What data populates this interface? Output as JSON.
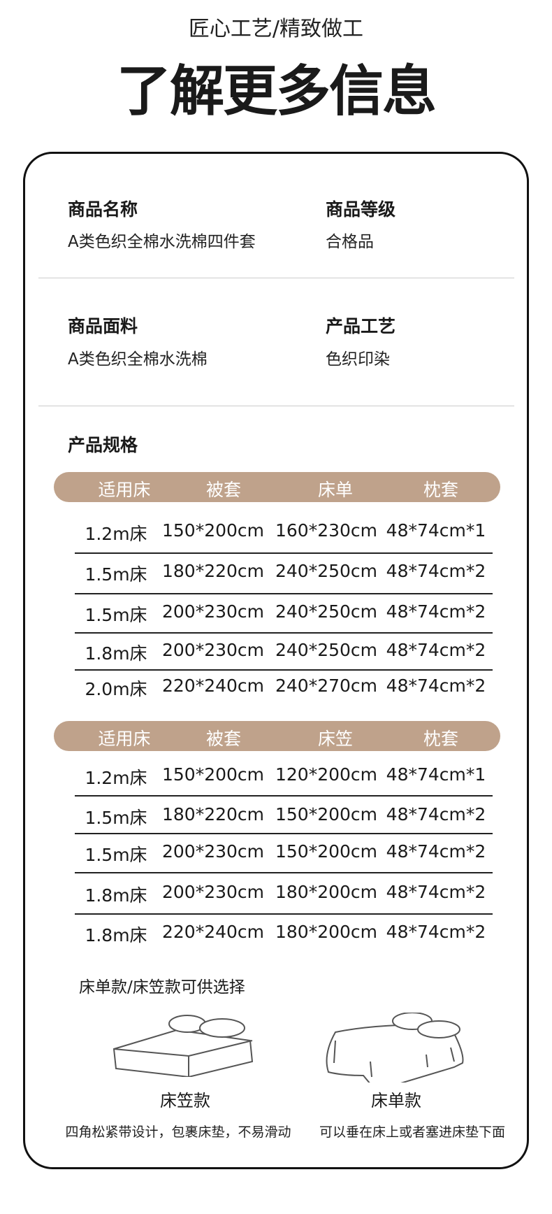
{
  "header": {
    "subtitle": "匠心工艺/精致做工",
    "title": "了解更多信息"
  },
  "info": [
    {
      "label": "商品名称",
      "value": "A类色织全棉水洗棉四件套"
    },
    {
      "label": "商品等级",
      "value": "合格品"
    },
    {
      "label": "商品面料",
      "value": "A类色织全棉水洗棉"
    },
    {
      "label": "产品工艺",
      "value": "色织印染"
    }
  ],
  "spec_title": "产品规格",
  "table1": {
    "headers": [
      "适用床",
      "被套",
      "床单",
      "枕套"
    ],
    "rows": [
      [
        "1.2m床",
        "150*200cm",
        "160*230cm",
        "48*74cm*1"
      ],
      [
        "1.5m床",
        "180*220cm",
        "240*250cm",
        "48*74cm*2"
      ],
      [
        "1.5m床",
        "200*230cm",
        "240*250cm",
        "48*74cm*2"
      ],
      [
        "1.8m床",
        "200*230cm",
        "240*250cm",
        "48*74cm*2"
      ],
      [
        "2.0m床",
        "220*240cm",
        "240*270cm",
        "48*74cm*2"
      ]
    ]
  },
  "table2": {
    "headers": [
      "适用床",
      "被套",
      "床笠",
      "枕套"
    ],
    "rows": [
      [
        "1.2m床",
        "150*200cm",
        "120*200cm",
        "48*74cm*1"
      ],
      [
        "1.5m床",
        "180*220cm",
        "150*200cm",
        "48*74cm*2"
      ],
      [
        "1.5m床",
        "200*230cm",
        "150*200cm",
        "48*74cm*2"
      ],
      [
        "1.8m床",
        "200*230cm",
        "180*200cm",
        "48*74cm*2"
      ],
      [
        "1.8m床",
        "220*240cm",
        "180*200cm",
        "48*74cm*2"
      ]
    ]
  },
  "options": {
    "title": "床单款/床笠款可供选择",
    "fitted": {
      "name": "床笠款",
      "desc": "四角松紧带设计，包裹床垫，不易滑动"
    },
    "flat": {
      "name": "床单款",
      "desc": "可以垂在床上或者塞进床垫下面"
    }
  },
  "colors": {
    "header_bar": "#bfa28b"
  }
}
